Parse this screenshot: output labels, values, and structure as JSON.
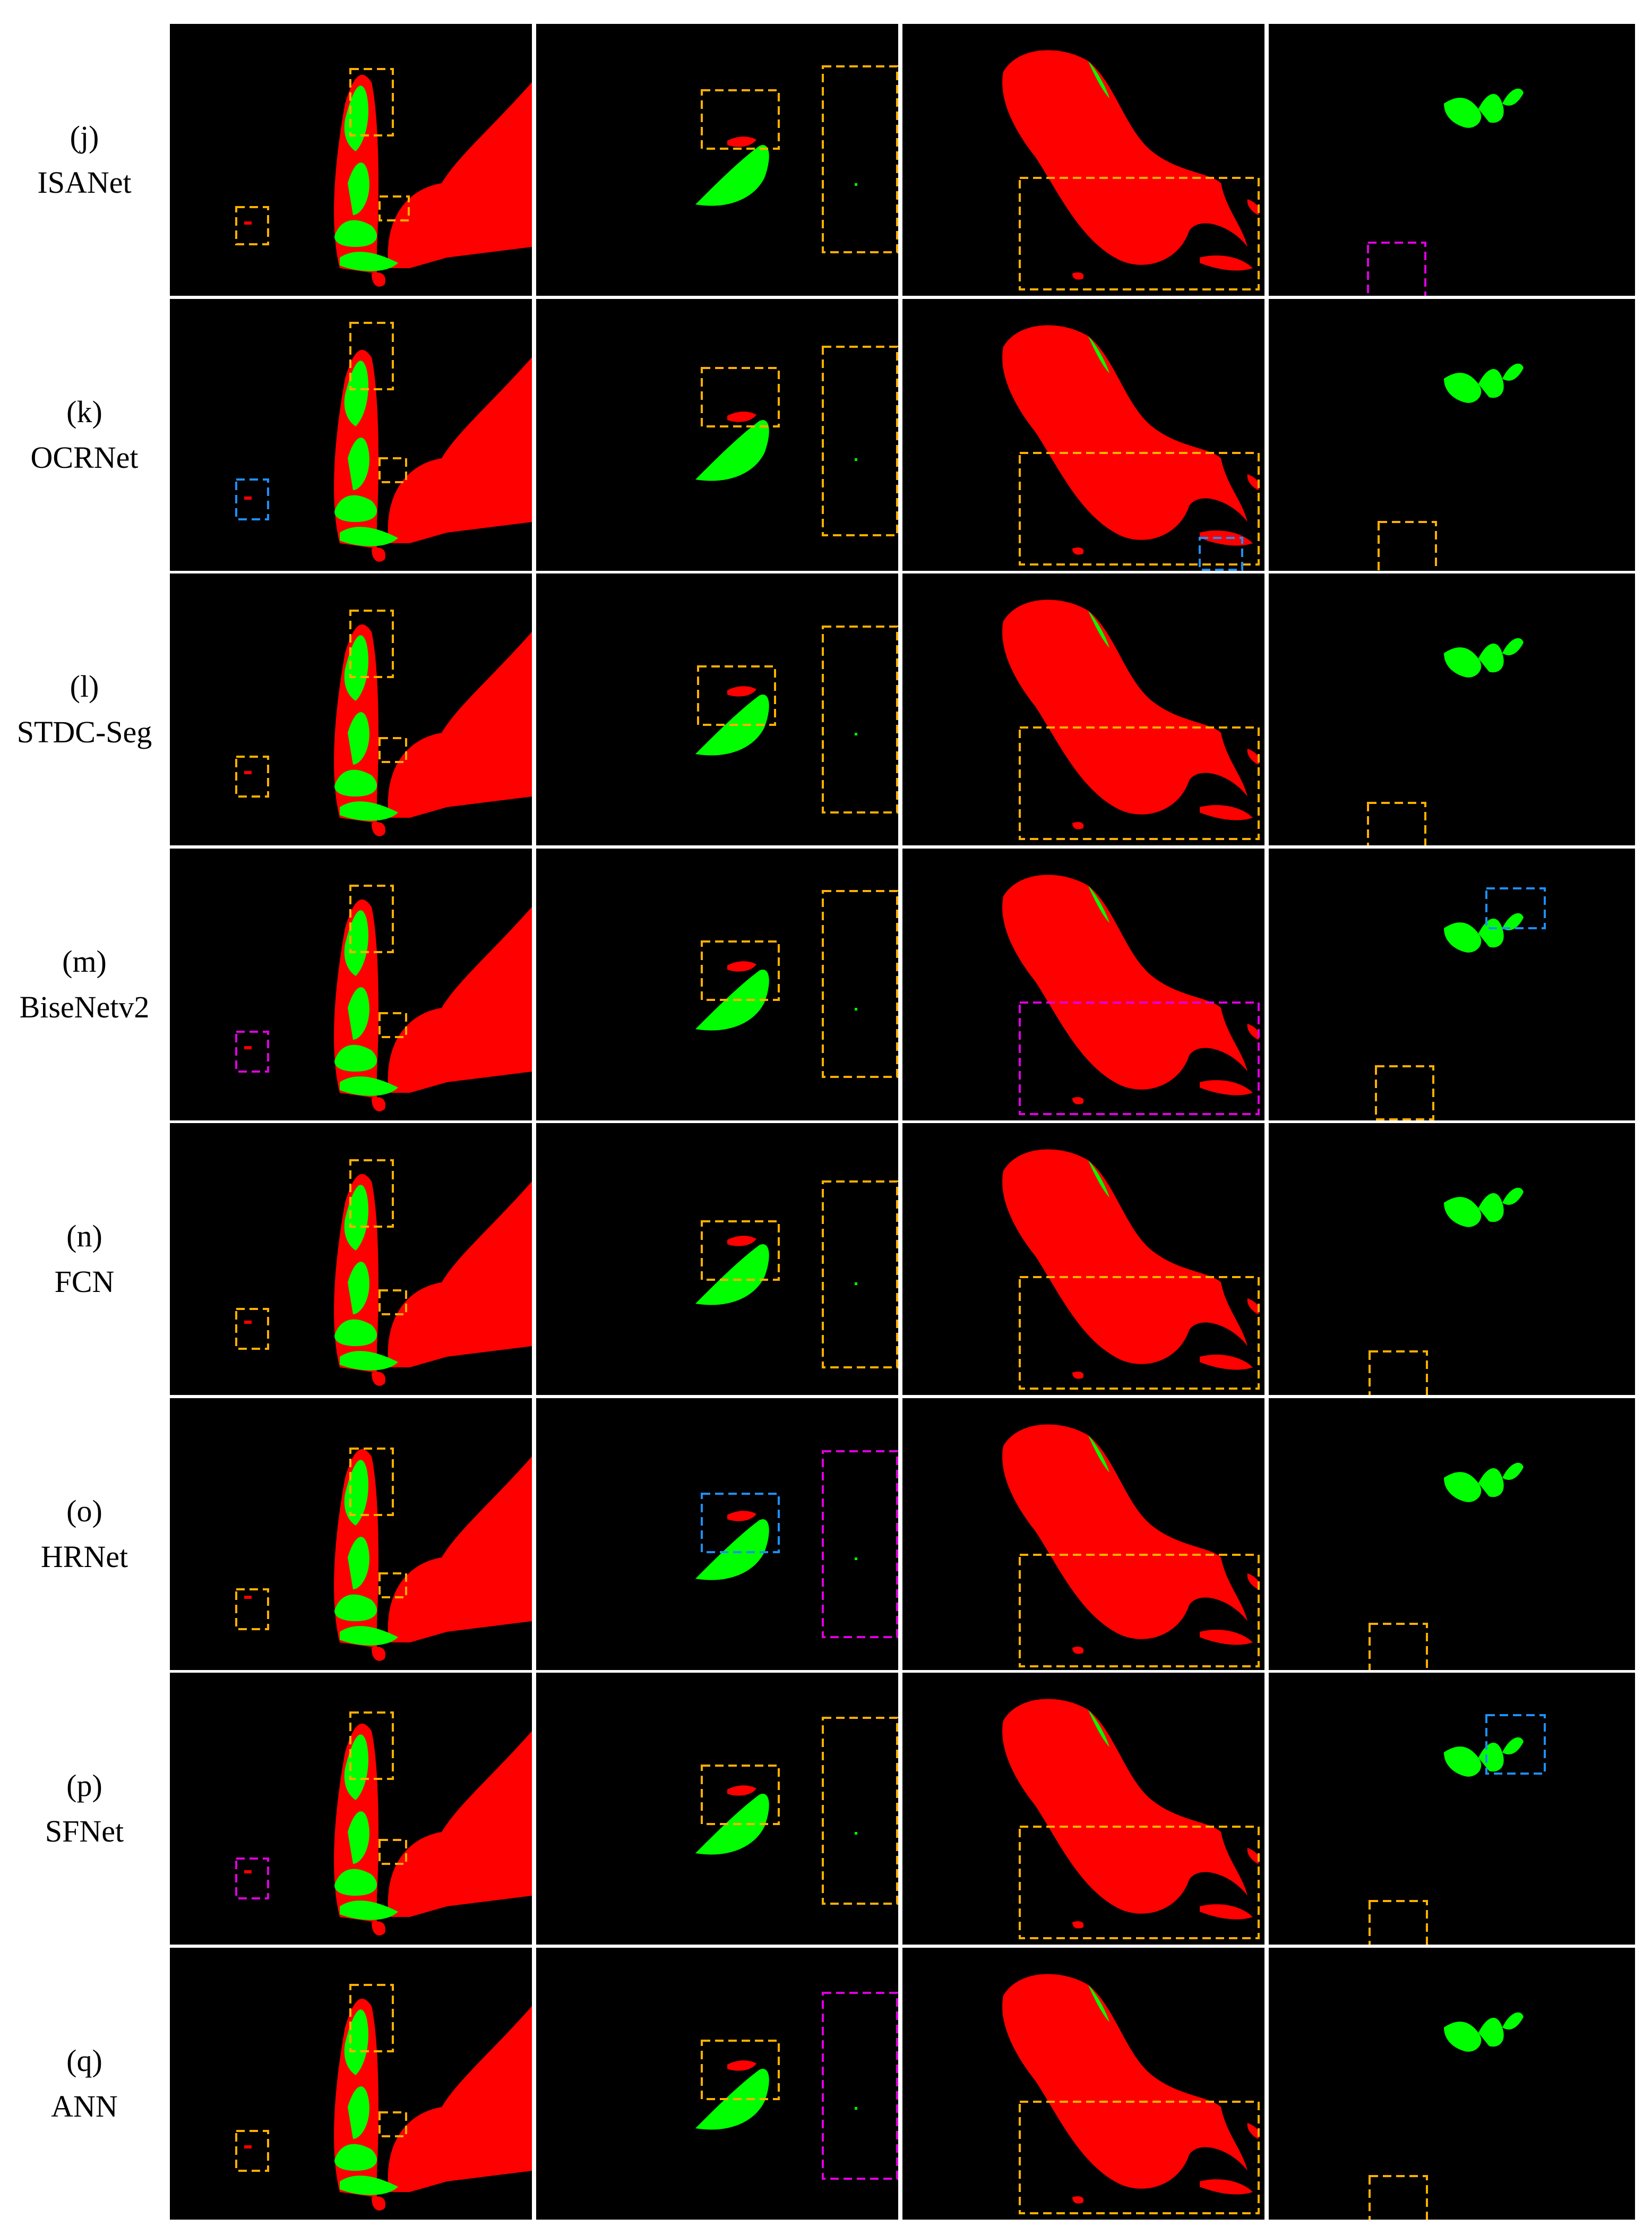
{
  "rows": [
    {
      "letter": "(j)",
      "method": "ISANet"
    },
    {
      "letter": "(k)",
      "method": "OCRNet"
    },
    {
      "letter": "(l)",
      "method": "STDC-Seg"
    },
    {
      "letter": "(m)",
      "method": "BiseNetv2"
    },
    {
      "letter": "(n)",
      "method": "FCN"
    },
    {
      "letter": "(o)",
      "method": "HRNet"
    },
    {
      "letter": "(p)",
      "method": "SFNet"
    },
    {
      "letter": "(q)",
      "method": "ANN"
    }
  ],
  "colors": {
    "background": "#000000",
    "class_red": "#ff0000",
    "class_green": "#00ff00",
    "box_orange": "#ffb000",
    "box_blue": "#1e90ff",
    "box_magenta": "#e000e0"
  }
}
